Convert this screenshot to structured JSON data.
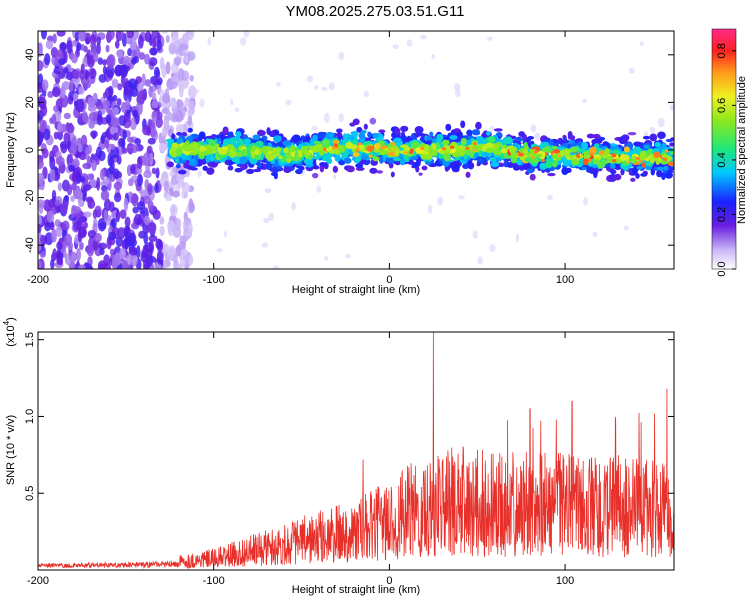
{
  "title": "YM08.2025.275.03.51.G11",
  "chart_data": [
    {
      "type": "heatmap",
      "name": "spectrogram",
      "xlabel": "Height of straight line (km)",
      "ylabel": "Frequency (Hz)",
      "xlim": [
        -200,
        162
      ],
      "ylim": [
        -50,
        50
      ],
      "xticks": [
        -200,
        -100,
        0,
        100
      ],
      "yticks": [
        -40,
        -20,
        0,
        20,
        40
      ],
      "xtick_labels": [
        "-200",
        "-100",
        "0",
        "100"
      ],
      "ytick_labels": [
        "-40",
        "-20",
        "0",
        "20",
        "40"
      ],
      "noise_region_x": [
        -200,
        -120
      ],
      "band": {
        "x_start": -125,
        "center_freq_points": [
          [
            -120,
            0
          ],
          [
            -100,
            0
          ],
          [
            -80,
            0
          ],
          [
            -60,
            -2
          ],
          [
            -40,
            0
          ],
          [
            -20,
            1
          ],
          [
            0,
            0
          ],
          [
            20,
            0
          ],
          [
            40,
            0
          ],
          [
            60,
            1
          ],
          [
            80,
            -2
          ],
          [
            100,
            -2
          ],
          [
            120,
            -3
          ],
          [
            140,
            -3
          ],
          [
            162,
            -3
          ]
        ],
        "half_width_hz": 6,
        "peak_amplitude": 0.85
      },
      "colorbar": {
        "label": "Normalized spectral amplitude",
        "range": [
          0,
          0.88
        ],
        "ticks": [
          0.0,
          0.2,
          0.4,
          0.6,
          0.8
        ],
        "tick_labels": [
          "0.0",
          "0.2",
          "0.4",
          "0.6",
          "0.8"
        ]
      }
    },
    {
      "type": "line",
      "name": "snr",
      "xlabel": "Height of straight line (km)",
      "ylabel": "SNR (10 * v/v)",
      "scale_label": "(x10",
      "scale_exp": "4",
      "scale_close": ")",
      "xlim": [
        -200,
        162
      ],
      "ylim": [
        0,
        1.55
      ],
      "xticks": [
        -200,
        -100,
        0,
        100
      ],
      "yticks": [
        0.5,
        1.0,
        1.5
      ],
      "xtick_labels": [
        "-200",
        "-100",
        "0",
        "100"
      ],
      "ytick_labels": [
        "0.5",
        "1.0",
        "1.5"
      ],
      "color": "#e8302a",
      "envelope": [
        [
          -200,
          0.04
        ],
        [
          -150,
          0.05
        ],
        [
          -120,
          0.07
        ],
        [
          -100,
          0.1
        ],
        [
          -80,
          0.16
        ],
        [
          -60,
          0.22
        ],
        [
          -40,
          0.28
        ],
        [
          -20,
          0.33
        ],
        [
          0,
          0.42
        ],
        [
          20,
          0.55
        ],
        [
          40,
          0.58
        ],
        [
          60,
          0.55
        ],
        [
          80,
          0.55
        ],
        [
          100,
          0.55
        ],
        [
          120,
          0.55
        ],
        [
          140,
          0.52
        ],
        [
          162,
          0.5
        ]
      ],
      "peaks": [
        [
          25,
          1.55
        ],
        [
          -15,
          0.72
        ],
        [
          80,
          1.05
        ],
        [
          104,
          1.1
        ],
        [
          158,
          1.18
        ],
        [
          95,
          0.98
        ]
      ]
    }
  ]
}
